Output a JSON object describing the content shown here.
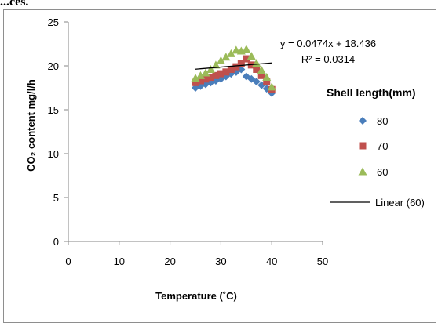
{
  "page_header": "...ces.",
  "chart_data": {
    "type": "scatter",
    "xlabel": "Temperature (˚C)",
    "ylabel": "CO₂ content mg/l/h",
    "xlim": [
      0,
      50
    ],
    "ylim": [
      0,
      25
    ],
    "x_ticks": [
      "0",
      "10",
      "20",
      "30",
      "40",
      "50"
    ],
    "y_ticks": [
      "0",
      "5",
      "10",
      "15",
      "20",
      "25"
    ],
    "grid": false,
    "legend_title": "Shell length(mm)",
    "legend_position": "right",
    "series": [
      {
        "name": "80",
        "marker": "diamond",
        "color": "#4a7ebb",
        "x": [
          25,
          26,
          27,
          28,
          29,
          30,
          31,
          32,
          33,
          34,
          35,
          36,
          37,
          38,
          39,
          40
        ],
        "y": [
          17.5,
          17.7,
          17.9,
          18.1,
          18.3,
          18.5,
          18.8,
          19.1,
          19.3,
          19.6,
          18.8,
          18.5,
          18.2,
          17.8,
          17.4,
          16.9
        ]
      },
      {
        "name": "70",
        "marker": "square",
        "color": "#c0504d",
        "x": [
          25,
          26,
          27,
          28,
          29,
          30,
          31,
          32,
          33,
          34,
          35,
          36,
          37,
          38,
          39,
          40
        ],
        "y": [
          18.1,
          18.3,
          18.5,
          18.7,
          18.9,
          19.1,
          19.3,
          19.6,
          19.9,
          20.3,
          20.8,
          20.1,
          19.6,
          18.9,
          18.2,
          17.3
        ]
      },
      {
        "name": "60",
        "marker": "triangle",
        "color": "#9bbb59",
        "x": [
          25,
          26,
          27,
          28,
          29,
          30,
          31,
          32,
          33,
          34,
          35,
          36,
          37,
          38,
          39,
          40
        ],
        "y": [
          18.6,
          18.9,
          19.2,
          19.6,
          20.1,
          20.6,
          21.0,
          21.4,
          21.8,
          21.7,
          21.9,
          21.1,
          20.3,
          19.5,
          18.7,
          17.6
        ]
      }
    ],
    "trendline": {
      "name": "Linear (60)",
      "slope": 0.0474,
      "intercept": 18.436,
      "x_range": [
        25,
        40
      ],
      "color": "#000000",
      "equation": "y = 0.0474x + 18.436",
      "r2": "R² = 0.0314"
    }
  }
}
